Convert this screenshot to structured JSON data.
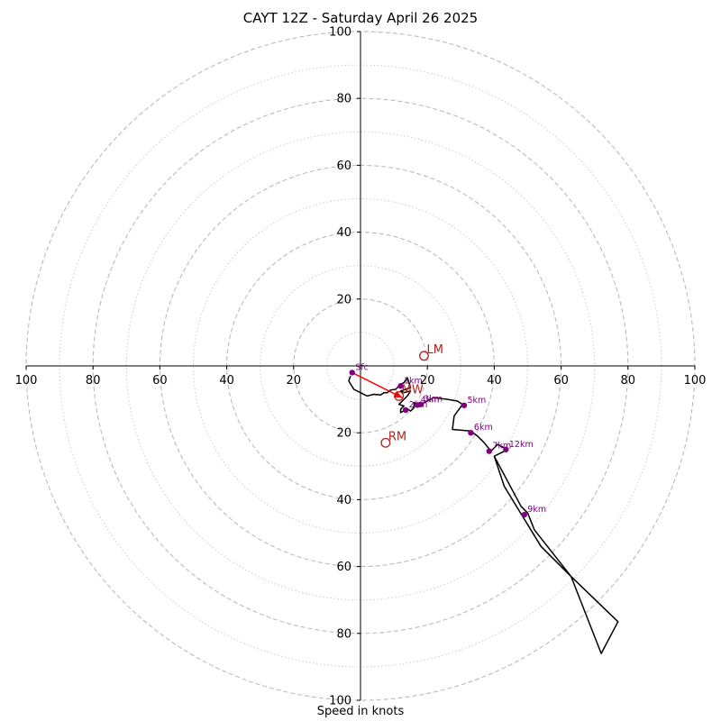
{
  "chart_data": {
    "type": "hodograph",
    "title": "CAYT 12Z - Saturday April 26 2025",
    "xlabel": "Speed in knots",
    "ring_labels": [
      "20",
      "40",
      "60",
      "80",
      "100"
    ],
    "x_tick_labels": [
      {
        "value": -100,
        "label": "100"
      },
      {
        "value": -80,
        "label": "80"
      },
      {
        "value": -60,
        "label": "60"
      },
      {
        "value": -40,
        "label": "40"
      },
      {
        "value": -20,
        "label": "20"
      },
      {
        "value": 20,
        "label": "20"
      },
      {
        "value": 40,
        "label": "40"
      },
      {
        "value": 60,
        "label": "60"
      },
      {
        "value": 80,
        "label": "80"
      },
      {
        "value": 100,
        "label": "100"
      }
    ],
    "y_tick_labels": [
      {
        "value": 100,
        "label": "100"
      },
      {
        "value": 80,
        "label": "80"
      },
      {
        "value": 60,
        "label": "60"
      },
      {
        "value": 40,
        "label": "40"
      },
      {
        "value": 20,
        "label": "20"
      },
      {
        "value": -20,
        "label": "20"
      },
      {
        "value": -40,
        "label": "40"
      },
      {
        "value": -60,
        "label": "60"
      },
      {
        "value": -80,
        "label": "80"
      },
      {
        "value": -100,
        "label": "100"
      }
    ],
    "xlim": [
      -100,
      100
    ],
    "ylim": [
      -100,
      100
    ],
    "rings_dashed": [
      20,
      40,
      60,
      80,
      100
    ],
    "rings_dotted": [
      10,
      30,
      50,
      70,
      90
    ],
    "hodograph_trace": [
      [
        -3,
        -3
      ],
      [
        -3.5,
        -4.5
      ],
      [
        -2,
        -7
      ],
      [
        0,
        -8
      ],
      [
        2,
        -9
      ],
      [
        4,
        -8.5
      ],
      [
        6,
        -8.7
      ],
      [
        7,
        -8
      ],
      [
        8,
        -8
      ],
      [
        9,
        -7.2
      ],
      [
        10.5,
        -7
      ],
      [
        12,
        -5.5
      ],
      [
        13,
        -5
      ],
      [
        14,
        -3.5
      ],
      [
        15,
        -6.5
      ],
      [
        12,
        -7.5
      ],
      [
        13,
        -8
      ],
      [
        15,
        -7.5
      ],
      [
        14,
        -9
      ],
      [
        12,
        -11
      ],
      [
        11.5,
        -11.5
      ],
      [
        13,
        -12
      ],
      [
        12,
        -13
      ],
      [
        12,
        -14
      ],
      [
        14,
        -12.8
      ],
      [
        15,
        -13.5
      ],
      [
        16,
        -12.5
      ],
      [
        16,
        -11
      ],
      [
        17,
        -12
      ],
      [
        18,
        -11.5
      ],
      [
        20,
        -10.5
      ],
      [
        22,
        -9.5
      ],
      [
        26,
        -10
      ],
      [
        29,
        -10.5
      ],
      [
        30.5,
        -11.5
      ],
      [
        28,
        -15
      ],
      [
        27.5,
        -19
      ],
      [
        33,
        -19.5
      ],
      [
        35,
        -21
      ],
      [
        37,
        -23
      ],
      [
        39,
        -25.5
      ],
      [
        41,
        -23.5
      ],
      [
        44,
        -25
      ],
      [
        40,
        -27
      ],
      [
        43,
        -36
      ],
      [
        54,
        -54
      ],
      [
        63,
        -63
      ],
      [
        77,
        -76.5
      ],
      [
        72,
        -86
      ],
      [
        63,
        -63
      ],
      [
        52,
        -49
      ],
      [
        50,
        -44
      ],
      [
        48,
        -42
      ],
      [
        40,
        -27
      ]
    ],
    "height_markers": [
      {
        "label": "Sfc",
        "u": -2.5,
        "v": -2
      },
      {
        "label": "1km",
        "u": 12,
        "v": -6
      },
      {
        "label": "2km",
        "u": 13.5,
        "v": -13.2
      },
      {
        "label": "3km",
        "u": 18,
        "v": -11.5
      },
      {
        "label": "4km",
        "u": 17,
        "v": -11.7
      },
      {
        "label": "5km",
        "u": 31,
        "v": -11.8
      },
      {
        "label": "6km",
        "u": 33,
        "v": -20
      },
      {
        "label": "7km",
        "u": 38.5,
        "v": -25.5
      },
      {
        "label": "12km",
        "u": 43.5,
        "v": -25
      },
      {
        "label": "9km",
        "u": 49,
        "v": -44.5
      }
    ],
    "storm_motion": [
      {
        "label": "LM",
        "u": 19,
        "v": 3
      },
      {
        "label": "MW",
        "u": 11.5,
        "v": -9
      },
      {
        "label": "RM",
        "u": 7.5,
        "v": -23
      }
    ],
    "shear_vector": {
      "from": [
        -2.5,
        -2
      ],
      "to": [
        12.5,
        -9.5
      ]
    },
    "colors": {
      "trace": "#000000",
      "markers": "#800080",
      "storm_motion": "#b22222",
      "shear_vector": "#ff0000",
      "grid": "#bbbbbb"
    }
  }
}
